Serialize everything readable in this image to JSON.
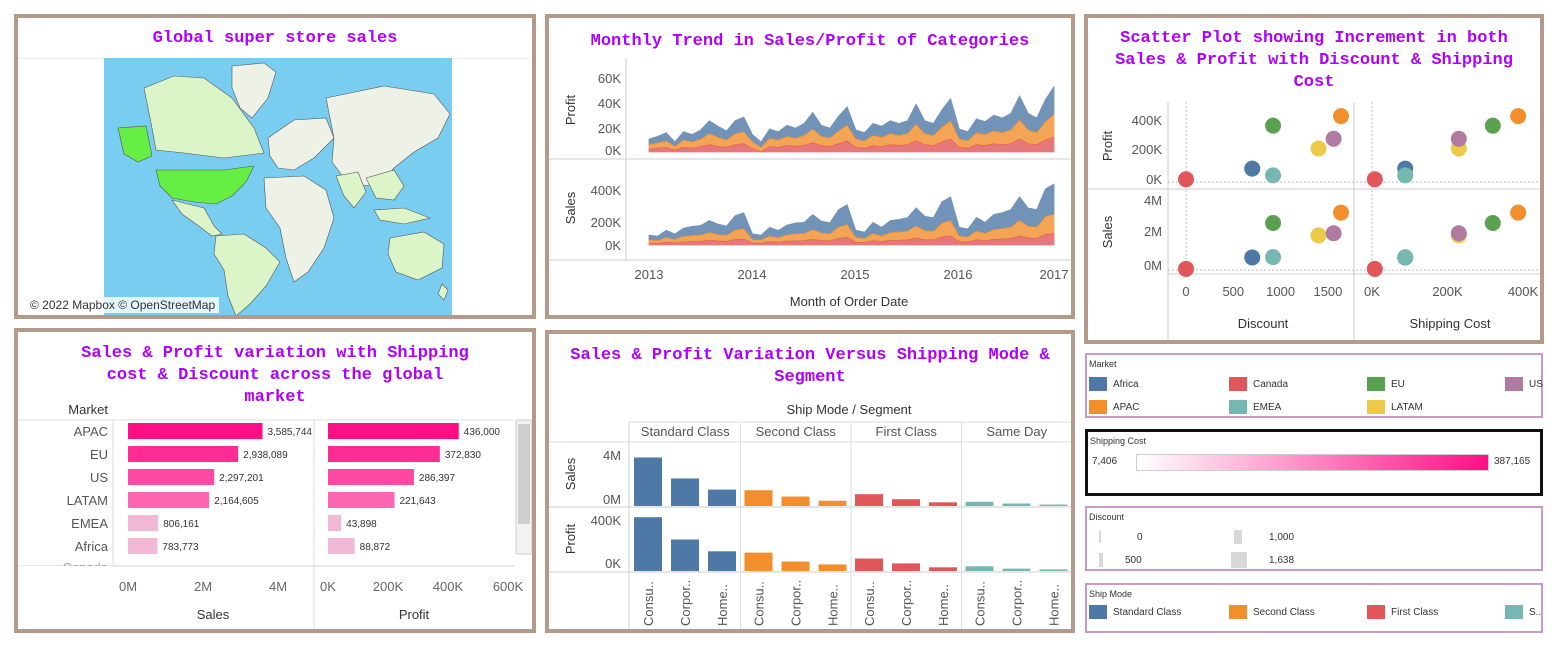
{
  "colors": {
    "markets": {
      "Africa": "#4e79a7",
      "Canada": "#e15759",
      "EU": "#59a14f",
      "US": "#b07aa1",
      "APAC": "#f28e2b",
      "EMEA": "#76b7b2",
      "LATAM": "#edc948"
    },
    "categories": [
      "#4e79a7",
      "#f28e2b",
      "#e15759"
    ],
    "shipmodes": [
      "#4e79a7",
      "#f28e2b",
      "#e15759",
      "#76b7b2"
    ],
    "bar_dark": "#ff0f85",
    "bar_light": "#f2b8d6"
  },
  "map": {
    "title": "Global super store sales",
    "credit": "© 2022 Mapbox © OpenStreetMap",
    "water": "#79cdf0",
    "land": "#eef2e6",
    "highlight": "#66ee44",
    "tint": "#dcf5c8"
  },
  "trend": {
    "title": "Monthly Trend in Sales/Profit of Categories",
    "xlabel": "Month of Order Date",
    "ylabel_top": "Profit",
    "ylabel_bottom": "Sales",
    "years": [
      "2013",
      "2014",
      "2015",
      "2016",
      "2017"
    ],
    "profit_ticks": [
      "60K",
      "40K",
      "20K",
      "0K"
    ],
    "sales_ticks": [
      "400K",
      "200K",
      "0K"
    ]
  },
  "scatter": {
    "title": "Scatter Plot showing Increment in both Sales & Profit with Discount & Shipping Cost",
    "ylabels": [
      "Profit",
      "Sales"
    ],
    "xlabels": [
      "Discount",
      "Shipping Cost"
    ],
    "profit_ticks": [
      "400K",
      "200K",
      "0K"
    ],
    "sales_ticks": [
      "4M",
      "2M",
      "0M"
    ],
    "discount_ticks": [
      "0",
      "500",
      "1000",
      "1500"
    ],
    "ship_ticks": [
      "0K",
      "200K",
      "400K"
    ]
  },
  "bars": {
    "title": "Sales & Profit variation with Shipping cost & Discount across the global market",
    "row_header": "Market",
    "sales_label": "Sales",
    "profit_label": "Profit",
    "sales_ticks": [
      "0M",
      "2M",
      "4M"
    ],
    "profit_ticks": [
      "0K",
      "200K",
      "400K",
      "600K"
    ],
    "partial_row": "Canada"
  },
  "ship": {
    "title": "Sales & Profit Variation Versus Shipping Mode & Segment",
    "header": "Ship Mode / Segment",
    "modes": [
      "Standard Class",
      "Second Class",
      "First Class",
      "Same Day"
    ],
    "segments": [
      "Consu..",
      "Corpor..",
      "Home.."
    ],
    "ylabels": [
      "Sales",
      "Profit"
    ],
    "sales_ticks": [
      "4M",
      "0M"
    ],
    "profit_ticks": [
      "400K",
      "0K"
    ]
  },
  "legend_market": {
    "title": "Market",
    "items": [
      "Africa",
      "Canada",
      "EU",
      "US",
      "APAC",
      "EMEA",
      "LATAM"
    ]
  },
  "legend_shipcost": {
    "title": "Shipping Cost",
    "min": "7,406",
    "max": "387,165"
  },
  "legend_discount": {
    "title": "Discount",
    "items": [
      "0",
      "1,000",
      "500",
      "1,638"
    ]
  },
  "legend_shipmode": {
    "title": "Ship Mode",
    "items": [
      "Standard Class",
      "Second Class",
      "First Class",
      "S.."
    ]
  },
  "chart_data": [
    {
      "type": "bar",
      "title": "Sales & Profit variation with Shipping cost & Discount across the global market",
      "categories": [
        "APAC",
        "EU",
        "US",
        "LATAM",
        "EMEA",
        "Africa"
      ],
      "series": [
        {
          "name": "Sales",
          "values": [
            3585744,
            2938089,
            2297201,
            2164605,
            806161,
            783773
          ]
        },
        {
          "name": "Profit",
          "values": [
            436000,
            372830,
            286397,
            221643,
            43898,
            88872
          ]
        }
      ],
      "data_labels": {
        "sales": [
          "3,585,744",
          "2,938,089",
          "2,297,201",
          "2,164,605",
          "806,161",
          "783,773"
        ],
        "profit": [
          "436,000",
          "372,830",
          "286,397",
          "221,643",
          "43,898",
          "88,872"
        ]
      },
      "xlim_sales": [
        0,
        5000000
      ],
      "xlim_profit": [
        0,
        650000
      ]
    },
    {
      "type": "scatter",
      "title": "Scatter Plot showing Increment in both Sales & Profit with Discount & Shipping Cost",
      "points": [
        {
          "market": "Canada",
          "discount": 0,
          "ship": 7406,
          "sales": 66928,
          "profit": 17817
        },
        {
          "market": "Africa",
          "discount": 700,
          "ship": 88000,
          "sales": 783773,
          "profit": 88872
        },
        {
          "market": "EMEA",
          "discount": 920,
          "ship": 88000,
          "sales": 806161,
          "profit": 43898
        },
        {
          "market": "EU",
          "discount": 920,
          "ship": 320000,
          "sales": 2938089,
          "profit": 372830
        },
        {
          "market": "LATAM",
          "discount": 1400,
          "ship": 230000,
          "sales": 2164605,
          "profit": 221643
        },
        {
          "market": "US",
          "discount": 1560,
          "ship": 230000,
          "sales": 2297201,
          "profit": 286397
        },
        {
          "market": "APAC",
          "discount": 1638,
          "ship": 387165,
          "sales": 3585744,
          "profit": 436000
        }
      ],
      "xlim_discount": [
        -100,
        1850
      ],
      "xlim_ship": [
        -10000,
        430000
      ],
      "ylim_profit": [
        -30000,
        500000
      ],
      "ylim_sales": [
        -300000,
        4600000
      ]
    },
    {
      "type": "bar",
      "title": "Sales & Profit Variation Versus Shipping Mode & Segment",
      "categories": [
        "Standard Class / Consumer",
        "Standard Class / Corporate",
        "Standard Class / Home Office",
        "Second Class / Consumer",
        "Second Class / Corporate",
        "Second Class / Home Office",
        "First Class / Consumer",
        "First Class / Corporate",
        "First Class / Home Office",
        "Same Day / Consumer",
        "Same Day / Corporate",
        "Same Day / Home Office"
      ],
      "series": [
        {
          "name": "Sales",
          "values": [
            3700000,
            2100000,
            1250000,
            1200000,
            720000,
            400000,
            900000,
            520000,
            280000,
            320000,
            190000,
            110000
          ]
        },
        {
          "name": "Profit",
          "values": [
            410000,
            240000,
            150000,
            140000,
            72000,
            50000,
            95000,
            58000,
            28000,
            36000,
            18000,
            12000
          ]
        }
      ],
      "ylim_sales": [
        0,
        4800000
      ],
      "ylim_profit": [
        0,
        480000
      ]
    },
    {
      "type": "area",
      "title": "Monthly Trend in Sales/Profit of Categories",
      "x": "monthly 2013-2016 (48 months)",
      "series_profit": [
        [
          6,
          7,
          9,
          5,
          9,
          8,
          10,
          14,
          12,
          10,
          14,
          16,
          8,
          6,
          10,
          9,
          12,
          11,
          13,
          18,
          12,
          11,
          16,
          20,
          10,
          9,
          13,
          12,
          14,
          13,
          14,
          22,
          14,
          13,
          19,
          24,
          11,
          10,
          15,
          14,
          17,
          16,
          18,
          26,
          18,
          16,
          24,
          30
        ],
        [
          5,
          6,
          7,
          4,
          8,
          7,
          8,
          12,
          10,
          8,
          12,
          13,
          7,
          5,
          9,
          8,
          10,
          9,
          11,
          15,
          10,
          9,
          14,
          17,
          9,
          8,
          11,
          10,
          12,
          11,
          12,
          18,
          12,
          11,
          16,
          20,
          9,
          8,
          13,
          12,
          14,
          13,
          15,
          21,
          15,
          13,
          20,
          25
        ],
        [
          3,
          4,
          5,
          2,
          5,
          4,
          6,
          8,
          6,
          5,
          8,
          9,
          4,
          0,
          6,
          5,
          7,
          6,
          7,
          10,
          7,
          6,
          9,
          12,
          5,
          4,
          7,
          6,
          8,
          7,
          8,
          12,
          8,
          7,
          11,
          14,
          5,
          4,
          8,
          7,
          9,
          8,
          9,
          14,
          9,
          8,
          13,
          16
        ]
      ],
      "series_sales": [
        [
          30,
          28,
          45,
          35,
          52,
          58,
          60,
          75,
          65,
          60,
          90,
          100,
          35,
          30,
          55,
          45,
          62,
          68,
          70,
          95,
          75,
          70,
          110,
          125,
          45,
          40,
          70,
          55,
          75,
          80,
          85,
          115,
          90,
          85,
          135,
          150,
          55,
          50,
          85,
          70,
          95,
          100,
          110,
          150,
          115,
          110,
          175,
          190
        ],
        [
          20,
          18,
          30,
          22,
          35,
          38,
          40,
          50,
          42,
          38,
          60,
          65,
          22,
          20,
          36,
          30,
          40,
          45,
          46,
          62,
          48,
          45,
          72,
          82,
          30,
          26,
          46,
          36,
          50,
          52,
          56,
          76,
          58,
          55,
          88,
          98,
          36,
          32,
          56,
          46,
          62,
          66,
          72,
          98,
          75,
          72,
          114,
          124
        ],
        [
          12,
          10,
          18,
          13,
          20,
          22,
          23,
          30,
          25,
          22,
          35,
          38,
          13,
          12,
          21,
          17,
          24,
          26,
          27,
          36,
          28,
          26,
          42,
          48,
          18,
          15,
          27,
          21,
          29,
          30,
          32,
          44,
          34,
          32,
          51,
          57,
          21,
          19,
          33,
          27,
          36,
          38,
          42,
          57,
          44,
          42,
          66,
          72
        ]
      ],
      "units": "thousands (stacked layer values, estimated)"
    }
  ]
}
